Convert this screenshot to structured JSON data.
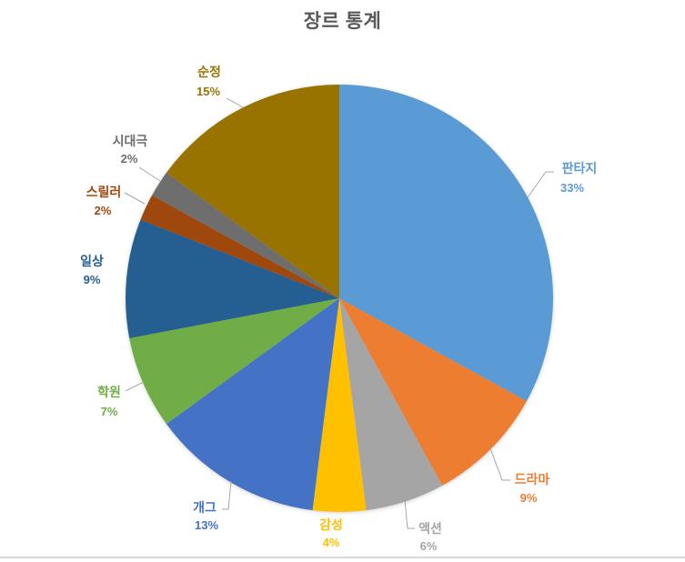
{
  "chart_data": {
    "type": "pie",
    "title": "장르 통계",
    "categories": [
      "판타지",
      "드라마",
      "액션",
      "감성",
      "개그",
      "학원",
      "일상",
      "스릴러",
      "시대극",
      "순정"
    ],
    "values": [
      33,
      9,
      6,
      4,
      13,
      7,
      9,
      2,
      2,
      15
    ],
    "unit": "%",
    "colors": [
      "#5B9BD5",
      "#ED7D31",
      "#A5A5A5",
      "#FFC000",
      "#4472C4",
      "#70AD47",
      "#255E91",
      "#9E480E",
      "#6E6E6E",
      "#997300"
    ],
    "start_angle_deg": 0,
    "direction": "clockwise",
    "legend": "none",
    "label_style": "outside labels with category name and percent, text colored same as slice, gray leader lines",
    "title_color": "#595959",
    "leader_line_color": "#A6A6A6",
    "background": "#FFFFFF",
    "bottom_border_color": "#D8D8D8"
  }
}
